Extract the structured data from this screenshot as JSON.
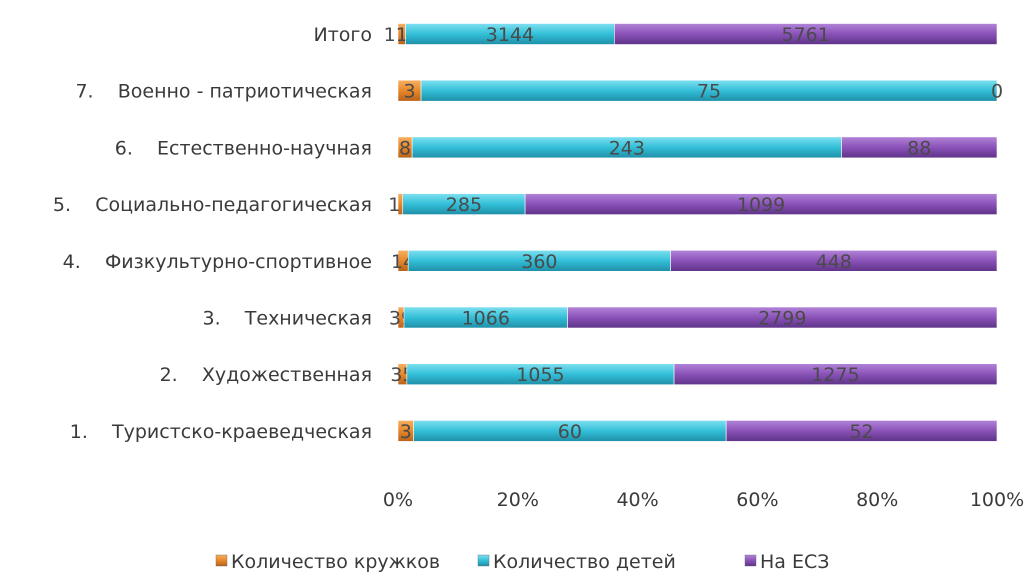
{
  "chart_data": {
    "type": "bar",
    "orientation": "horizontal",
    "stacked": "percent",
    "categories": [
      "1.    Туристско-краеведческая",
      "2.    Художественная",
      "3.    Техническая",
      "4.    Физкультурно-спортивное",
      "5.    Социально-педагогическая",
      "6.    Естественно-научная",
      "7.    Военно - патриотическая",
      "Итого"
    ],
    "series": [
      {
        "name": "Количество кружков",
        "values": [
          3,
          35,
          39,
          14,
          11,
          8,
          3,
          113
        ]
      },
      {
        "name": "Количество детей",
        "values": [
          60,
          1055,
          1066,
          360,
          285,
          243,
          75,
          3144
        ]
      },
      {
        "name": "На ЕСЗ",
        "values": [
          52,
          1275,
          2799,
          448,
          1099,
          88,
          0,
          5761
        ]
      }
    ],
    "x_ticks": [
      "0%",
      "20%",
      "40%",
      "60%",
      "80%",
      "100%"
    ],
    "xlim": [
      0,
      100
    ],
    "legend_position": "bottom",
    "grid": false,
    "colors": [
      "#e8872a",
      "#33bfd8",
      "#8a52b8"
    ]
  }
}
